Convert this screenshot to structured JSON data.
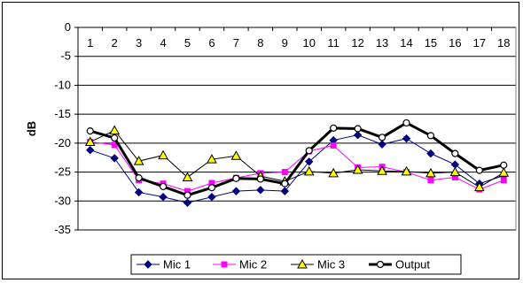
{
  "chart_data": {
    "type": "line",
    "title": "",
    "xlabel": "",
    "ylabel": "dB",
    "ylim": [
      -35,
      0
    ],
    "yticks": [
      0,
      -5,
      -10,
      -15,
      -20,
      -25,
      -30,
      -35
    ],
    "x": [
      "1",
      "2",
      "3",
      "4",
      "5",
      "6",
      "7",
      "8",
      "9",
      "10",
      "11",
      "12",
      "13",
      "14",
      "15",
      "16",
      "17",
      "18"
    ],
    "grid": "horizontal",
    "legend_position": "bottom",
    "series": [
      {
        "name": "Mic 1",
        "color": "#000080",
        "marker": "diamond",
        "values": [
          -21.2,
          -22.6,
          -28.5,
          -29.3,
          -30.3,
          -29.3,
          -28.3,
          -28.1,
          -28.3,
          -23.2,
          -19.5,
          -18.6,
          -20.2,
          -19.2,
          -21.8,
          -23.7,
          -27.0,
          -25.6
        ]
      },
      {
        "name": "Mic 2",
        "color": "#ff00ff",
        "marker": "square",
        "values": [
          -19.8,
          -20.3,
          -26.4,
          -27.0,
          -28.3,
          -26.9,
          -26.0,
          -25.2,
          -25.0,
          -21.4,
          -20.4,
          -24.2,
          -24.1,
          -25.0,
          -26.4,
          -25.9,
          -28.0,
          -26.4
        ]
      },
      {
        "name": "Mic 3",
        "color": "#000000",
        "marker": "triangle",
        "fill": "#ffff00",
        "values": [
          -19.8,
          -17.8,
          -23.1,
          -22.1,
          -25.9,
          -22.8,
          -22.2,
          -25.7,
          -26.6,
          -24.9,
          -25.2,
          -24.6,
          -24.8,
          -24.9,
          -25.2,
          -25.0,
          -27.6,
          -25.1
        ]
      },
      {
        "name": "Output",
        "color": "#000000",
        "marker": "circle",
        "bold": true,
        "values": [
          -17.9,
          -19.1,
          -26.0,
          -27.5,
          -29.0,
          -27.7,
          -26.1,
          -26.2,
          -27.0,
          -21.3,
          -17.4,
          -17.5,
          -19.0,
          -16.5,
          -18.7,
          -21.8,
          -24.7,
          -23.8
        ]
      }
    ]
  }
}
